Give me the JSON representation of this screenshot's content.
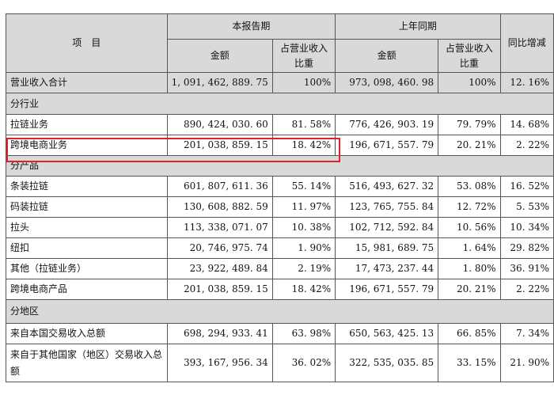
{
  "headers": {
    "item": "项　目",
    "current_period": "本报告期",
    "prior_period": "上年同期",
    "yoy_change": "同比增减",
    "amount": "金额",
    "share": "占营业收入比重"
  },
  "total": {
    "label": "营业收入合计",
    "cur_amount": "1, 091, 462, 889. 75",
    "cur_share": "100%",
    "prev_amount": "973, 098, 460. 98",
    "prev_share": "100%",
    "change": "12. 16%"
  },
  "sections": [
    {
      "title": "分行业",
      "rows": [
        {
          "label": "拉链业务",
          "cur_amount": "890, 424, 030. 60",
          "cur_share": "81. 58%",
          "prev_amount": "776, 426, 903. 19",
          "prev_share": "79. 79%",
          "change": "14. 68%"
        },
        {
          "label": "跨境电商业务",
          "cur_amount": "201, 038, 859. 15",
          "cur_share": "18. 42%",
          "prev_amount": "196, 671, 557. 79",
          "prev_share": "20. 21%",
          "change": "2. 22%"
        }
      ]
    },
    {
      "title": "分产品",
      "rows": [
        {
          "label": "条装拉链",
          "cur_amount": "601, 807, 611. 36",
          "cur_share": "55. 14%",
          "prev_amount": "516, 493, 627. 32",
          "prev_share": "53. 08%",
          "change": "16. 52%"
        },
        {
          "label": "码装拉链",
          "cur_amount": "130, 608, 882. 59",
          "cur_share": "11. 97%",
          "prev_amount": "123, 765, 755. 84",
          "prev_share": "12. 72%",
          "change": "5. 53%"
        },
        {
          "label": "拉头",
          "cur_amount": "113, 338, 071. 07",
          "cur_share": "10. 38%",
          "prev_amount": "102, 712, 592. 84",
          "prev_share": "10. 56%",
          "change": "10. 34%"
        },
        {
          "label": "纽扣",
          "cur_amount": "20, 746, 975. 74",
          "cur_share": "1. 90%",
          "prev_amount": "15, 981, 689. 75",
          "prev_share": "1. 64%",
          "change": "29. 82%"
        },
        {
          "label": "其他（拉链业务）",
          "cur_amount": "23, 922, 489. 84",
          "cur_share": "2. 19%",
          "prev_amount": "17, 473, 237. 44",
          "prev_share": "1. 80%",
          "change": "36. 91%"
        },
        {
          "label": "跨境电商产品",
          "cur_amount": "201, 038, 859. 15",
          "cur_share": "18. 42%",
          "prev_amount": "196, 671, 557. 79",
          "prev_share": "20. 21%",
          "change": "2. 22%"
        }
      ]
    },
    {
      "title": "分地区",
      "rows": [
        {
          "label": "来自本国交易收入总额",
          "cur_amount": "698, 294, 933. 41",
          "cur_share": "63. 98%",
          "prev_amount": "650, 563, 425. 13",
          "prev_share": "66. 85%",
          "change": "7. 34%"
        },
        {
          "label": "来自于其他国家（地区）交易收入总额",
          "cur_amount": "393, 167, 956. 34",
          "cur_share": "36. 02%",
          "prev_amount": "322, 535, 035. 85",
          "prev_share": "33. 15%",
          "change": "21. 90%"
        }
      ]
    }
  ]
}
